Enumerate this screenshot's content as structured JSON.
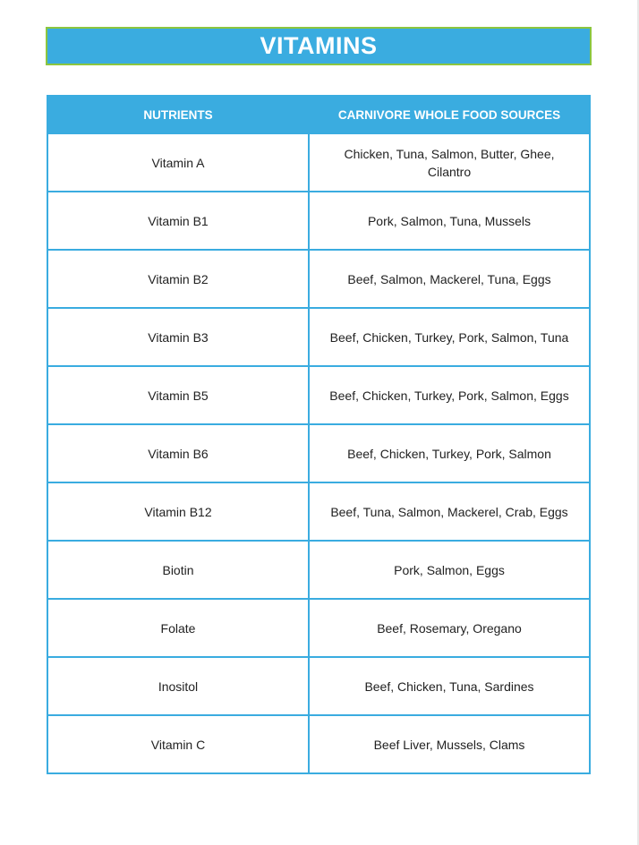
{
  "title": "VITAMINS",
  "colors": {
    "header_blue": "#3aace0",
    "title_border_green": "#8cc63f"
  },
  "table": {
    "headers": [
      "NUTRIENTS",
      "CARNIVORE WHOLE FOOD SOURCES"
    ],
    "rows": [
      [
        "Vitamin A",
        "Chicken, Tuna, Salmon, Butter, Ghee, Cilantro"
      ],
      [
        "Vitamin B1",
        "Pork, Salmon, Tuna, Mussels"
      ],
      [
        "Vitamin B2",
        "Beef, Salmon, Mackerel, Tuna, Eggs"
      ],
      [
        "Vitamin B3",
        "Beef, Chicken, Turkey, Pork, Salmon, Tuna"
      ],
      [
        "Vitamin B5",
        "Beef, Chicken, Turkey, Pork, Salmon, Eggs"
      ],
      [
        "Vitamin B6",
        "Beef, Chicken, Turkey, Pork, Salmon"
      ],
      [
        "Vitamin B12",
        "Beef, Tuna, Salmon, Mackerel, Crab, Eggs"
      ],
      [
        "Biotin",
        "Pork, Salmon, Eggs"
      ],
      [
        "Folate",
        "Beef, Rosemary, Oregano"
      ],
      [
        "Inositol",
        "Beef, Chicken, Tuna, Sardines"
      ],
      [
        "Vitamin C",
        "Beef Liver, Mussels, Clams"
      ]
    ]
  }
}
